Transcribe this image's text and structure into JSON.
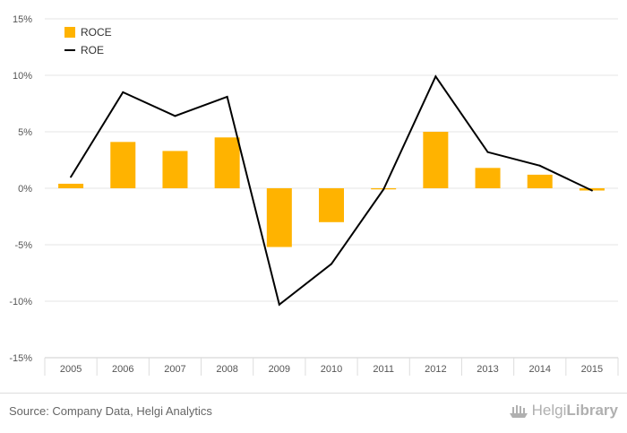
{
  "chart_data": {
    "type": "bar",
    "categories": [
      "2005",
      "2006",
      "2007",
      "2008",
      "2009",
      "2010",
      "2011",
      "2012",
      "2013",
      "2014",
      "2015"
    ],
    "series": [
      {
        "name": "ROCE",
        "kind": "bar",
        "color": "#FFB300",
        "values": [
          0.4,
          4.1,
          3.3,
          4.5,
          -5.2,
          -3.0,
          -0.1,
          5.0,
          1.8,
          1.2,
          -0.2
        ]
      },
      {
        "name": "ROE",
        "kind": "line",
        "color": "#000000",
        "values": [
          1.0,
          8.5,
          6.4,
          8.1,
          -10.3,
          -6.7,
          -0.1,
          9.9,
          3.2,
          2.0,
          -0.2
        ]
      }
    ],
    "yticks": [
      15,
      10,
      5,
      0,
      -5,
      -10,
      -15
    ],
    "ytick_labels": [
      "15%",
      "10%",
      "5%",
      "0%",
      "-5%",
      "-10%",
      "-15%"
    ],
    "ylim": [
      -15,
      15
    ],
    "grid": true,
    "legend_position": "top-left"
  },
  "legend": {
    "items": [
      {
        "label": "ROCE",
        "color": "#FFB300",
        "kind": "bar"
      },
      {
        "label": "ROE",
        "color": "#000000",
        "kind": "line"
      }
    ]
  },
  "footer": {
    "source": "Source: Company Data, Helgi Analytics",
    "brand_a": "Helgi",
    "brand_b": "Library",
    "brand_icon": "helgi-ship-logo"
  }
}
